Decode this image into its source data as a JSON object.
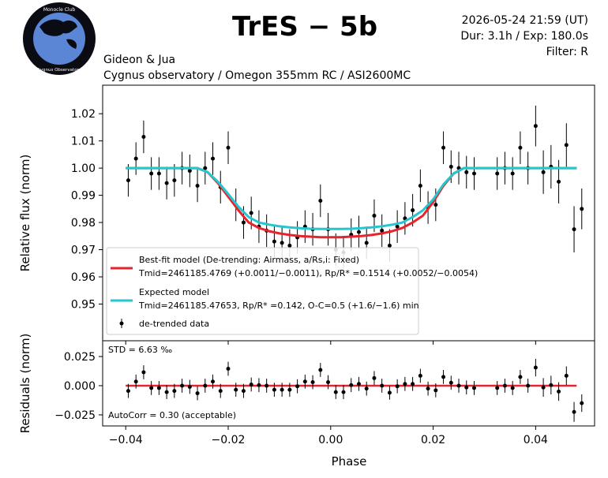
{
  "header": {
    "title": "TrES − 5b",
    "datetime": "2026-05-24 21:59 (UT)",
    "duration": "Dur: 3.1h / Exp: 180.0s",
    "filter": "Filter: R",
    "observer": "Gideon & Jua",
    "site": "Cygnus observatory / Omegon 355mm RC / ASI2600MC"
  },
  "logo": {
    "text_top": "Monocle Club",
    "text_bottom": "Cygnus Observatory"
  },
  "chart_data": [
    {
      "type": "scatter",
      "panel": "light-curve",
      "ylabel": "Relative flux (norm)",
      "xlim": [
        -0.0445,
        0.0515
      ],
      "ylim": [
        0.9365,
        1.0305
      ],
      "yticks": [
        "0.95",
        "0.96",
        "0.97",
        "0.98",
        "0.99",
        "1.00",
        "1.01",
        "1.02"
      ],
      "ytick_values": [
        0.95,
        0.96,
        0.97,
        0.98,
        0.99,
        1.0,
        1.01,
        1.02
      ],
      "series": [
        {
          "name": "de-trended data",
          "x": [
            -0.0395,
            -0.038,
            -0.0365,
            -0.035,
            -0.0335,
            -0.032,
            -0.0305,
            -0.029,
            -0.0275,
            -0.026,
            -0.0245,
            -0.023,
            -0.0215,
            -0.02,
            -0.0185,
            -0.017,
            -0.0155,
            -0.014,
            -0.0125,
            -0.011,
            -0.0095,
            -0.008,
            -0.0065,
            -0.005,
            -0.0035,
            -0.002,
            -0.0005,
            0.001,
            0.0025,
            0.004,
            0.0055,
            0.007,
            0.0085,
            0.01,
            0.0115,
            0.013,
            0.0145,
            0.016,
            0.0175,
            0.019,
            0.0205,
            0.022,
            0.0235,
            0.025,
            0.0265,
            0.028,
            0.0325,
            0.034,
            0.0355,
            0.037,
            0.0385,
            0.04,
            0.0415,
            0.043,
            0.0445,
            0.046,
            0.0475,
            0.049
          ],
          "y": [
            0.9955,
            1.0035,
            1.0115,
            0.998,
            0.998,
            0.9945,
            0.9955,
            1.0,
            0.999,
            0.9935,
            1.0,
            1.0035,
            0.993,
            1.0075,
            0.9865,
            0.98,
            0.9835,
            0.9785,
            0.977,
            0.973,
            0.9725,
            0.9715,
            0.9745,
            0.9785,
            0.9775,
            0.988,
            0.9775,
            0.97,
            0.969,
            0.9755,
            0.9765,
            0.9725,
            0.9825,
            0.977,
            0.9715,
            0.9785,
            0.9815,
            0.9845,
            0.9935,
            0.9855,
            0.9865,
            1.0075,
            1.0005,
            1.0,
            0.9985,
            0.998,
            0.998,
            1.0,
            0.998,
            1.0075,
            1.0,
            1.0155,
            0.9985,
            1.0005,
            0.995,
            1.0085,
            0.9775,
            0.985
          ],
          "yerr": [
            0.006,
            0.006,
            0.006,
            0.006,
            0.006,
            0.006,
            0.006,
            0.006,
            0.006,
            0.006,
            0.006,
            0.006,
            0.006,
            0.006,
            0.006,
            0.006,
            0.006,
            0.006,
            0.006,
            0.006,
            0.006,
            0.006,
            0.006,
            0.006,
            0.006,
            0.006,
            0.006,
            0.006,
            0.006,
            0.006,
            0.006,
            0.006,
            0.006,
            0.006,
            0.006,
            0.006,
            0.006,
            0.006,
            0.006,
            0.006,
            0.006,
            0.006,
            0.006,
            0.006,
            0.006,
            0.006,
            0.006,
            0.006,
            0.006,
            0.006,
            0.006,
            0.0075,
            0.008,
            0.008,
            0.008,
            0.008,
            0.0085,
            0.0075
          ]
        },
        {
          "name": "Best-fit model (De-trending: Airmass, a/Rs,i: Fixed)",
          "color": "#e8232c",
          "x": [
            -0.04,
            -0.026,
            -0.024,
            -0.022,
            -0.02,
            -0.018,
            -0.016,
            -0.014,
            -0.012,
            -0.01,
            -0.008,
            -0.006,
            -0.004,
            -0.002,
            0.0,
            0.002,
            0.004,
            0.006,
            0.008,
            0.01,
            0.012,
            0.014,
            0.016,
            0.018,
            0.02,
            0.022,
            0.024,
            0.026,
            0.048
          ],
          "y": [
            1.0,
            1.0,
            0.9985,
            0.9945,
            0.9895,
            0.9845,
            0.98,
            0.978,
            0.9768,
            0.976,
            0.9754,
            0.975,
            0.9748,
            0.9746,
            0.9746,
            0.9746,
            0.9748,
            0.975,
            0.9754,
            0.976,
            0.9768,
            0.978,
            0.98,
            0.9825,
            0.9875,
            0.9935,
            0.998,
            1.0,
            1.0
          ]
        },
        {
          "name": "Expected model",
          "color": "#26c6cf",
          "x": [
            -0.04,
            -0.026,
            -0.024,
            -0.022,
            -0.02,
            -0.018,
            -0.016,
            -0.014,
            -0.012,
            -0.01,
            -0.008,
            -0.006,
            -0.004,
            -0.002,
            0.0,
            0.002,
            0.004,
            0.006,
            0.008,
            0.01,
            0.012,
            0.014,
            0.016,
            0.018,
            0.02,
            0.022,
            0.024,
            0.026,
            0.048
          ],
          "y": [
            1.0,
            1.0,
            0.9985,
            0.995,
            0.9905,
            0.9858,
            0.982,
            0.98,
            0.9792,
            0.9786,
            0.9782,
            0.9779,
            0.9777,
            0.9776,
            0.9776,
            0.9776,
            0.9777,
            0.9779,
            0.9782,
            0.9786,
            0.9792,
            0.98,
            0.982,
            0.9845,
            0.9885,
            0.994,
            0.998,
            1.0,
            1.0
          ]
        }
      ],
      "legend": {
        "placement": "bottom-left",
        "best_fit_label": "Best-fit model (De-trending: Airmass, a/Rs,i: Fixed)",
        "best_fit_params": "Tmid=2461185.4769 (+0.0011/−0.0011), Rp/R* =0.1514 (+0.0052/−0.0054)",
        "expected_label": "Expected model",
        "expected_params": "Tmid=2461185.47653, Rp/R* =0.142, O-C=0.5 (+1.6/−1.6) min",
        "data_label": "de-trended data"
      }
    },
    {
      "type": "scatter",
      "panel": "residuals",
      "xlabel": "Phase",
      "ylabel": "Residuals (norm)",
      "xlim": [
        -0.0445,
        0.0515
      ],
      "ylim": [
        -0.0345,
        0.0385
      ],
      "xticks": [
        "−0.04",
        "−0.02",
        "0.00",
        "0.02",
        "0.04"
      ],
      "xtick_values": [
        -0.04,
        -0.02,
        0.0,
        0.02,
        0.04
      ],
      "yticks": [
        "−0.025",
        "0.000",
        "0.025"
      ],
      "ytick_values": [
        -0.025,
        0.0,
        0.025
      ],
      "zero_line_color": "#e8232c",
      "series": [
        {
          "name": "residuals",
          "x": [
            -0.0395,
            -0.038,
            -0.0365,
            -0.035,
            -0.0335,
            -0.032,
            -0.0305,
            -0.029,
            -0.0275,
            -0.026,
            -0.0245,
            -0.023,
            -0.0215,
            -0.02,
            -0.0185,
            -0.017,
            -0.0155,
            -0.014,
            -0.0125,
            -0.011,
            -0.0095,
            -0.008,
            -0.0065,
            -0.005,
            -0.0035,
            -0.002,
            -0.0005,
            0.001,
            0.0025,
            0.004,
            0.0055,
            0.007,
            0.0085,
            0.01,
            0.0115,
            0.013,
            0.0145,
            0.016,
            0.0175,
            0.019,
            0.0205,
            0.022,
            0.0235,
            0.025,
            0.0265,
            0.028,
            0.0325,
            0.034,
            0.0355,
            0.037,
            0.0385,
            0.04,
            0.0415,
            0.043,
            0.0445,
            0.046,
            0.0475,
            0.049
          ],
          "y": [
            -0.0045,
            0.0035,
            0.0115,
            -0.002,
            -0.002,
            -0.0055,
            -0.0045,
            0.0,
            -0.001,
            -0.0065,
            0.0,
            0.0035,
            -0.0045,
            0.0145,
            -0.0035,
            -0.0045,
            0.001,
            0.0005,
            0.0,
            -0.0035,
            -0.0035,
            -0.0035,
            -0.0005,
            0.0035,
            0.003,
            0.0135,
            0.003,
            -0.0055,
            -0.0055,
            0.0005,
            0.0015,
            -0.0025,
            0.0065,
            0.0,
            -0.006,
            -0.0005,
            0.0015,
            0.0015,
            0.0085,
            -0.0025,
            -0.004,
            0.0075,
            0.0025,
            0.0,
            -0.0015,
            -0.002,
            -0.002,
            0.0,
            -0.002,
            0.0075,
            0.0,
            0.0155,
            -0.0015,
            0.0005,
            -0.005,
            0.0085,
            -0.0225,
            -0.015
          ],
          "yerr": [
            0.006,
            0.006,
            0.006,
            0.006,
            0.006,
            0.006,
            0.006,
            0.006,
            0.006,
            0.006,
            0.006,
            0.006,
            0.006,
            0.006,
            0.006,
            0.006,
            0.006,
            0.006,
            0.006,
            0.006,
            0.006,
            0.006,
            0.006,
            0.006,
            0.006,
            0.006,
            0.006,
            0.006,
            0.006,
            0.006,
            0.006,
            0.006,
            0.006,
            0.006,
            0.006,
            0.006,
            0.006,
            0.006,
            0.006,
            0.006,
            0.006,
            0.006,
            0.006,
            0.006,
            0.006,
            0.006,
            0.006,
            0.006,
            0.006,
            0.006,
            0.006,
            0.0075,
            0.008,
            0.008,
            0.008,
            0.008,
            0.0085,
            0.0075
          ]
        }
      ],
      "annotations": {
        "std": "STD = 6.63 ‰",
        "autocorr": "AutoCorr = 0.30 (acceptable)"
      }
    }
  ]
}
